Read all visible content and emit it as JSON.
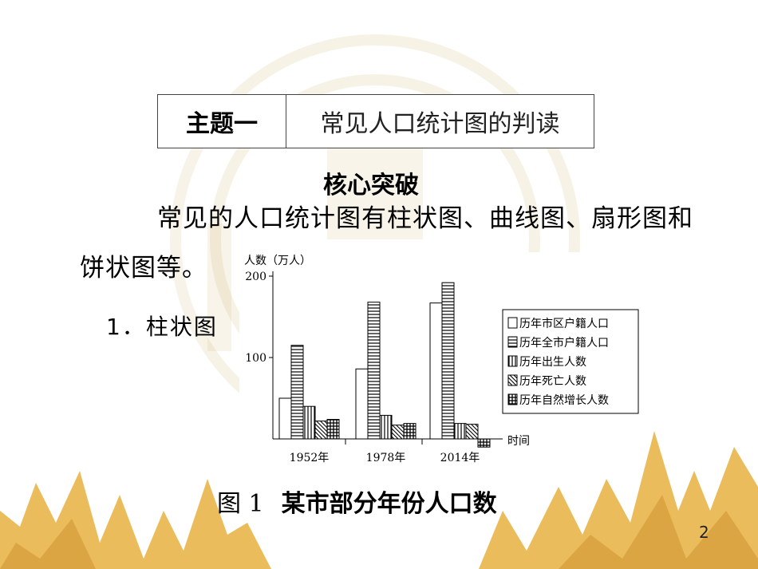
{
  "slide": {
    "topic_label": "主题一",
    "topic_title": "常见人口统计图的判读",
    "heading": "核心突破",
    "paragraph_line1": "常见的人口统计图有柱状图、曲线图、扇形图和",
    "paragraph_line2": "饼状图等。",
    "item_1": "1．柱状图",
    "caption_fig": "图 1",
    "caption_text": "某市部分年份人口数",
    "page_number": "2"
  },
  "chart_data": {
    "type": "bar",
    "ylabel": "人数（万人）",
    "xlabel": "时间",
    "categories": [
      "1952年",
      "1978年",
      "2014年"
    ],
    "yticks": [
      100,
      200
    ],
    "ylim": [
      0,
      200
    ],
    "series": [
      {
        "name": "历年市区户籍人口",
        "values": [
          50,
          86,
          167
        ]
      },
      {
        "name": "历年全市户籍人口",
        "values": [
          115,
          168,
          192
        ]
      },
      {
        "name": "历年出生人数",
        "values": [
          40,
          29,
          19
        ]
      },
      {
        "name": "历年死亡人数",
        "values": [
          22,
          17,
          18
        ]
      },
      {
        "name": "历年自然增长人数",
        "values": [
          24,
          19,
          -10
        ]
      }
    ],
    "legend_position": "right",
    "colors": {
      "bar_stroke": "#000000",
      "background": "#ffffff"
    }
  }
}
